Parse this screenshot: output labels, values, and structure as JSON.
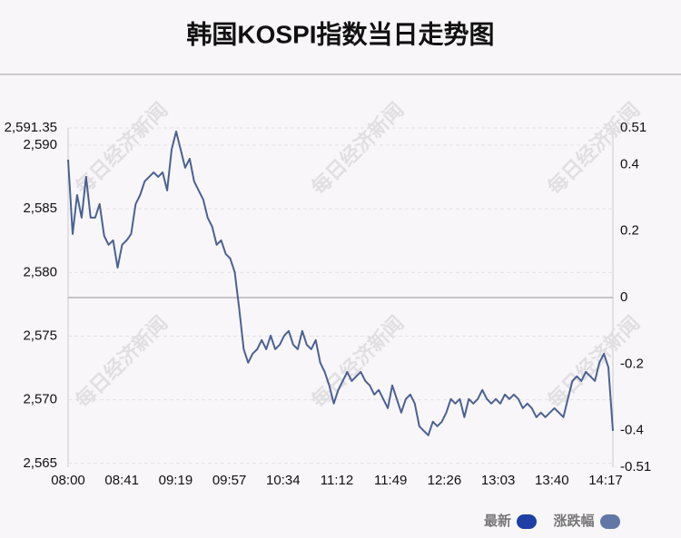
{
  "chart_data": {
    "type": "line",
    "title": "韩国KOSPI指数当日走势图",
    "watermark": "每日经济新闻",
    "x_labels": [
      "08:00",
      "08:41",
      "09:19",
      "09:57",
      "10:34",
      "11:12",
      "11:49",
      "12:26",
      "13:03",
      "13:40",
      "14:17"
    ],
    "ylim": [
      2564.7,
      2591.35
    ],
    "yticks": [
      {
        "value": 2591.35,
        "label": "2,591.35"
      },
      {
        "value": 2590,
        "label": "2,590"
      },
      {
        "value": 2585,
        "label": "2,585"
      },
      {
        "value": 2580,
        "label": "2,580"
      },
      {
        "value": 2575,
        "label": "2,575"
      },
      {
        "value": 2570,
        "label": "2,570"
      },
      {
        "value": 2565,
        "label": "2,565"
      }
    ],
    "y2lim": [
      -0.51,
      0.51
    ],
    "y2ticks": [
      0.51,
      0.4,
      0.2,
      0,
      -0.2,
      -0.4,
      -0.51
    ],
    "grid": true,
    "series": [
      {
        "name": "最新",
        "color": "#1d3fa6",
        "line_color": "#4b6193",
        "values": [
          2588.86,
          2583.02,
          2586.08,
          2584.3,
          2587.51,
          2584.3,
          2584.3,
          2585.37,
          2582.88,
          2582.17,
          2582.52,
          2580.38,
          2582.17,
          2582.52,
          2583.02,
          2585.37,
          2586.08,
          2587.15,
          2587.51,
          2587.86,
          2587.51,
          2587.86,
          2586.44,
          2589.64,
          2591.07,
          2589.64,
          2588.22,
          2588.93,
          2587.15,
          2586.44,
          2585.73,
          2584.3,
          2583.59,
          2582.17,
          2582.52,
          2581.45,
          2581.1,
          2580.03,
          2577.18,
          2573.97,
          2572.91,
          2573.62,
          2573.97,
          2574.69,
          2573.97,
          2575.04,
          2573.97,
          2574.33,
          2575.04,
          2575.4,
          2574.33,
          2573.97,
          2575.4,
          2574.33,
          2573.97,
          2574.69,
          2572.91,
          2572.19,
          2571.13,
          2569.7,
          2570.77,
          2571.48,
          2572.19,
          2571.48,
          2571.84,
          2572.19,
          2571.48,
          2571.13,
          2570.41,
          2570.77,
          2570.06,
          2569.34,
          2571.13,
          2570.06,
          2568.99,
          2570.06,
          2570.41,
          2569.7,
          2567.92,
          2567.56,
          2567.21,
          2568.28,
          2567.92,
          2568.28,
          2568.99,
          2570.06,
          2569.7,
          2570.06,
          2568.63,
          2570.06,
          2569.7,
          2570.06,
          2570.77,
          2570.06,
          2569.7,
          2570.06,
          2569.7,
          2570.41,
          2570.06,
          2570.41,
          2570.06,
          2569.34,
          2569.7,
          2569.34,
          2568.63,
          2568.99,
          2568.63,
          2568.99,
          2569.34,
          2568.99,
          2568.63,
          2570.06,
          2571.48,
          2571.84,
          2571.48,
          2572.19,
          2571.84,
          2571.48,
          2572.91,
          2573.62,
          2572.55,
          2567.56
        ]
      },
      {
        "name": "涨跌幅",
        "color": "#6178a6"
      }
    ]
  }
}
